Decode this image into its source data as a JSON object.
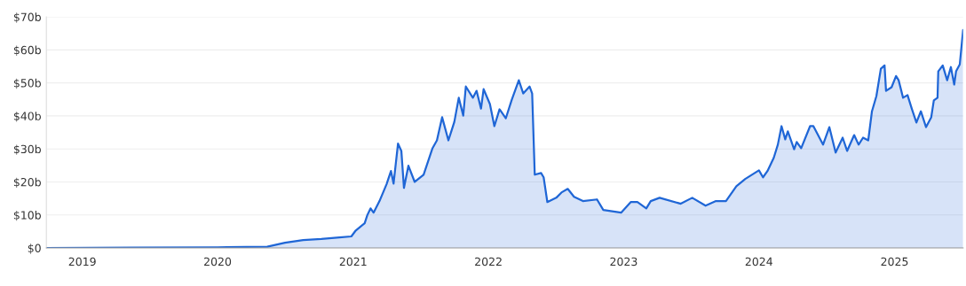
{
  "chart_data": {
    "type": "area",
    "color": "#1f66d6",
    "grid": "y",
    "legend": false,
    "x": [
      "2018-09-26",
      "2019-05-19",
      "2020-01-01",
      "2020-05-14",
      "2020-07-01",
      "2020-08-19",
      "2020-10-07",
      "2020-11-25",
      "2020-12-27",
      "2021-01-08",
      "2021-02-01",
      "2021-02-08",
      "2021-02-17",
      "2021-02-25",
      "2021-03-13",
      "2021-04-01",
      "2021-04-13",
      "2021-04-20",
      "2021-05-02",
      "2021-05-11",
      "2021-05-18",
      "2021-05-30",
      "2021-06-16",
      "2021-07-10",
      "2021-08-03",
      "2021-08-15",
      "2021-08-29",
      "2021-09-15",
      "2021-10-01",
      "2021-10-13",
      "2021-10-25",
      "2021-11-01",
      "2021-11-20",
      "2021-11-30",
      "2021-12-12",
      "2021-12-19",
      "2022-01-05",
      "2022-01-17",
      "2022-01-31",
      "2022-02-17",
      "2022-03-05",
      "2022-03-24",
      "2022-04-05",
      "2022-04-22",
      "2022-04-29",
      "2022-05-06",
      "2022-05-23",
      "2022-05-30",
      "2022-06-09",
      "2022-07-03",
      "2022-07-17",
      "2022-08-03",
      "2022-08-20",
      "2022-09-13",
      "2022-10-21",
      "2022-11-07",
      "2022-12-25",
      "2023-01-20",
      "2023-02-07",
      "2023-03-03",
      "2023-03-15",
      "2023-04-08",
      "2023-06-04",
      "2023-07-05",
      "2023-08-10",
      "2023-09-07",
      "2023-10-04",
      "2023-11-01",
      "2023-11-25",
      "2024-01-01",
      "2024-01-12",
      "2024-01-24",
      "2024-02-10",
      "2024-02-21",
      "2024-03-02",
      "2024-03-12",
      "2024-03-19",
      "2024-04-05",
      "2024-04-12",
      "2024-04-24",
      "2024-05-18",
      "2024-05-27",
      "2024-06-22",
      "2024-07-09",
      "2024-07-26",
      "2024-08-14",
      "2024-08-26",
      "2024-09-14",
      "2024-09-26",
      "2024-10-08",
      "2024-10-22",
      "2024-11-01",
      "2024-11-13",
      "2024-11-25",
      "2024-12-05",
      "2024-12-09",
      "2024-12-24",
      "2025-01-05",
      "2025-01-12",
      "2025-01-24",
      "2025-02-05",
      "2025-02-17",
      "2025-03-01",
      "2025-03-13",
      "2025-03-27",
      "2025-04-10",
      "2025-04-17",
      "2025-04-27",
      "2025-04-29",
      "2025-05-11",
      "2025-05-23",
      "2025-06-02",
      "2025-06-11",
      "2025-06-16",
      "2025-06-26",
      "2025-07-05"
    ],
    "values": [
      0,
      0.1,
      0.2,
      0.4,
      1.6,
      2.4,
      2.7,
      3.2,
      3.5,
      5.3,
      7.5,
      9.9,
      12,
      10.7,
      14.2,
      19.3,
      23.3,
      19.5,
      31.6,
      29.4,
      18.2,
      24.9,
      20,
      22.2,
      30.2,
      32.6,
      39.6,
      32.6,
      38.2,
      45.5,
      40.1,
      48.9,
      45.5,
      47.6,
      42.2,
      48.1,
      43.6,
      36.9,
      42,
      39.3,
      44.9,
      50.8,
      46.8,
      48.9,
      46.8,
      22.2,
      22.7,
      21.4,
      13.9,
      15.2,
      16.8,
      17.9,
      15.5,
      14.2,
      14.7,
      11.5,
      10.7,
      13.9,
      13.9,
      12,
      14.2,
      15.2,
      13.4,
      15.2,
      12.8,
      14.2,
      14.2,
      18.7,
      20.9,
      23.5,
      21.4,
      23.3,
      27.3,
      31.3,
      36.9,
      32.9,
      35.3,
      29.9,
      32.1,
      30.2,
      36.9,
      36.9,
      31.3,
      36.6,
      28.9,
      33.4,
      29.4,
      34.2,
      31.3,
      33.4,
      32.6,
      41.4,
      46,
      54.3,
      55.3,
      47.6,
      48.7,
      52.1,
      50.8,
      45.5,
      46.3,
      42,
      38,
      41.4,
      36.6,
      39.6,
      44.7,
      45.5,
      53.5,
      55.3,
      50.8,
      54.8,
      49.5,
      53.5,
      55.6,
      66
    ],
    "xlim": [
      "2018-09-26",
      "2025-07-05"
    ],
    "xticks": [
      "2019",
      "2020",
      "2021",
      "2022",
      "2023",
      "2024",
      "2025"
    ],
    "ylim": [
      0,
      70
    ],
    "yticks": [
      {
        "value": 0,
        "label": "$0"
      },
      {
        "value": 10,
        "label": "$10b"
      },
      {
        "value": 20,
        "label": "$20b"
      },
      {
        "value": 30,
        "label": "$30b"
      },
      {
        "value": 40,
        "label": "$40b"
      },
      {
        "value": 50,
        "label": "$50b"
      },
      {
        "value": 60,
        "label": "$60b"
      },
      {
        "value": 70,
        "label": "$70b"
      }
    ]
  }
}
